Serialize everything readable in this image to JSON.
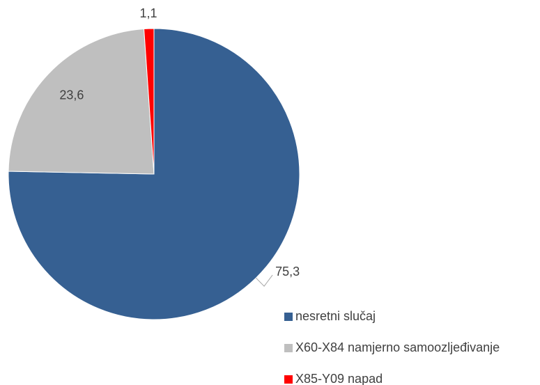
{
  "chart_data": {
    "type": "pie",
    "categories": [
      "nesretni slučaj",
      "X60-X84 namjerno samoozljeđivanje",
      "X85-Y09 napad"
    ],
    "values": [
      75.3,
      23.6,
      1.1
    ],
    "value_labels": [
      "75,3",
      "23,6",
      "1,1"
    ],
    "colors": [
      "#366092",
      "#bfbfbf",
      "#ff0000"
    ],
    "legend": "bottom-right"
  }
}
